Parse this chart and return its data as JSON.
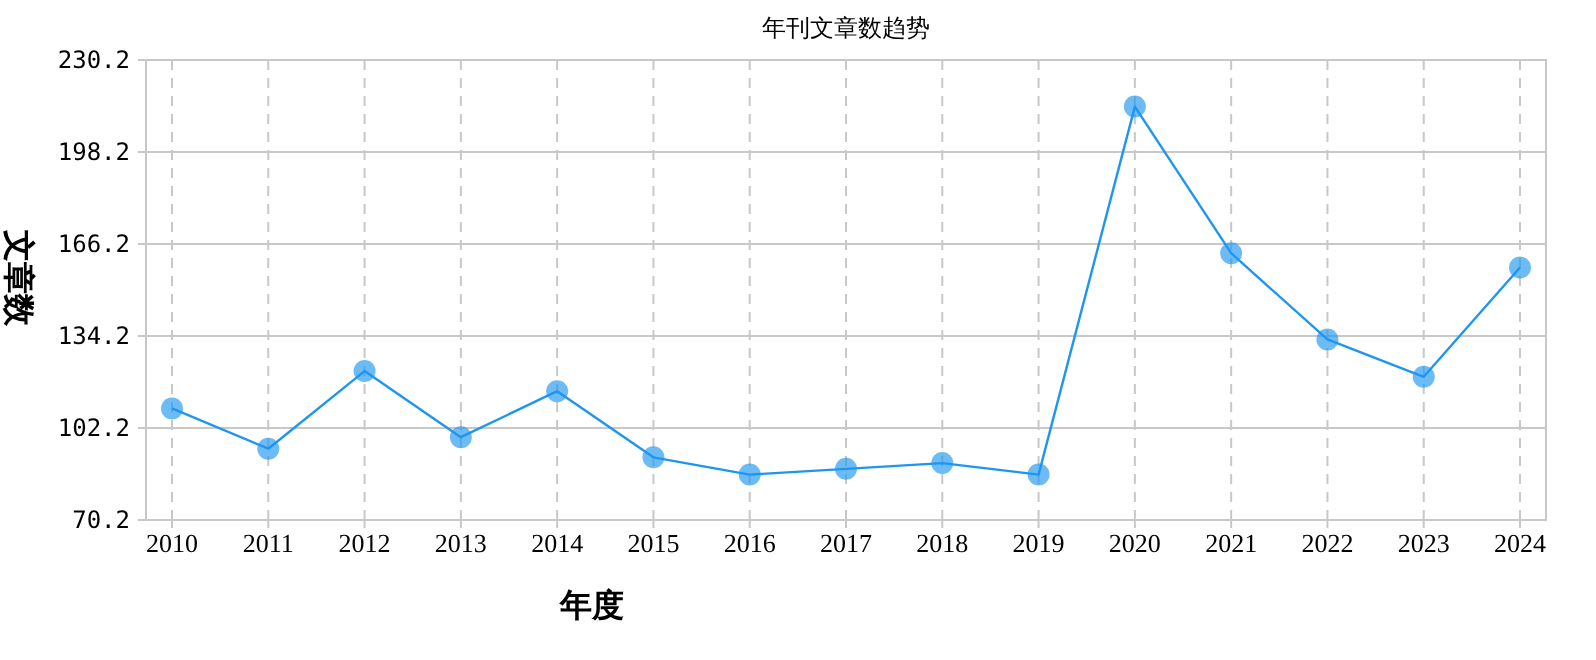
{
  "chart_data": {
    "type": "line",
    "title": "年刊文章数趋势",
    "xlabel": "年度",
    "ylabel": "文章数",
    "categories": [
      "2010",
      "2011",
      "2012",
      "2013",
      "2014",
      "2015",
      "2016",
      "2017",
      "2018",
      "2019",
      "2020",
      "2021",
      "2022",
      "2023",
      "2024"
    ],
    "series": [
      {
        "color": "#1e96f0",
        "values": [
          109,
          95,
          122,
          99,
          115,
          92,
          86,
          88,
          90,
          86,
          214,
          163,
          133,
          120,
          158
        ]
      }
    ],
    "ylim": [
      70.2,
      230.2
    ],
    "yticks": [
      70.2,
      102.2,
      134.2,
      166.2,
      198.2,
      230.2
    ],
    "grid": true,
    "marker": "circle",
    "line_style": "solid"
  }
}
